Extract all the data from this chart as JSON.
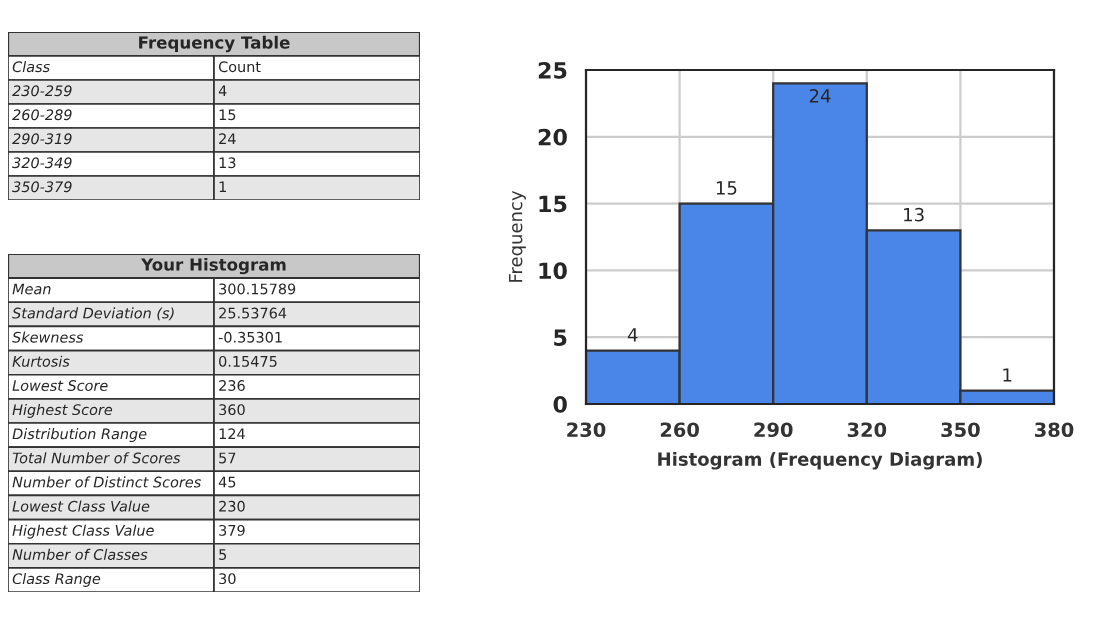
{
  "chart_data": [
    {
      "type": "other",
      "title": "Frequency Table",
      "annotations": [
        "Class",
        "Count",
        "230-259",
        "4",
        "260-289",
        "15",
        "290-319",
        "24",
        "320-349",
        "13",
        "350-379",
        "1"
      ]
    },
    {
      "type": "other",
      "title": "Your Histogram",
      "annotations": [
        "Mean",
        "300.15789",
        "Standard Deviation (s)",
        "25.53764",
        "Skewness",
        "-0.35301",
        "Kurtosis",
        "0.15475",
        "Lowest Score",
        "236",
        "Highest Score",
        "360",
        "Distribution Range",
        "124",
        "Total Number of Scores",
        "57",
        "Number of Distinct Scores",
        "45",
        "Lowest Class Value",
        "230",
        "Highest Class Value",
        "379",
        "Number of Classes",
        "5",
        "Class Range",
        "30"
      ]
    },
    {
      "type": "histogram",
      "xlabel": "Histogram (Frequency Diagram)",
      "ylabel": "Frequency",
      "bins": [
        230,
        260,
        290,
        320,
        350,
        380
      ],
      "values": [
        4,
        15,
        24,
        13,
        1
      ],
      "color": "#4a86e8",
      "data_labels": true,
      "grid": true,
      "xlim": [
        230,
        380
      ],
      "xticks": [
        230,
        260,
        290,
        320,
        350,
        380
      ],
      "ylim": [
        0,
        25
      ],
      "yticks": [
        0,
        5,
        10,
        15,
        20,
        25
      ]
    }
  ]
}
